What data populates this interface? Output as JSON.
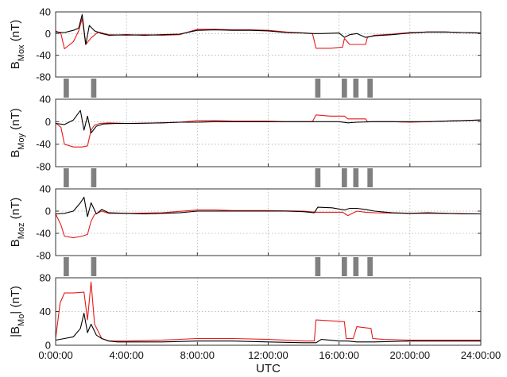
{
  "colors": {
    "primary_trace": "#000000",
    "secondary_trace": "#e41a1c",
    "marker_bars": "#808080",
    "grid": "#b0b0b0",
    "frame": "#333333"
  },
  "x_axis": {
    "label": "UTC",
    "range_hours": [
      0,
      24
    ],
    "tick_hours": [
      0,
      4,
      8,
      12,
      16,
      20,
      24
    ],
    "tick_labels": [
      "0:00:00",
      "4:00:00",
      "8:00:00",
      "12:00:00",
      "16:00:00",
      "20:00:00",
      "24:00:00"
    ]
  },
  "marker_strip": {
    "intervals_hours": [
      [
        0.45,
        0.75
      ],
      [
        2.0,
        2.3
      ],
      [
        14.65,
        14.95
      ],
      [
        16.15,
        16.45
      ],
      [
        16.8,
        17.1
      ],
      [
        17.6,
        17.9
      ]
    ]
  },
  "chart_data": [
    {
      "type": "line",
      "panel": "Bmox",
      "ylabel_main": "B",
      "ylabel_sub": "Mox",
      "ylabel_unit": " (nT)",
      "ylim": [
        -80,
        40
      ],
      "yticks": [
        -80,
        -40,
        0,
        40
      ],
      "ytick_labels": [
        "-80",
        "-40",
        "0",
        "40"
      ],
      "grid": true,
      "series": [
        {
          "color": "black",
          "x": [
            0,
            0.5,
            1.0,
            1.3,
            1.5,
            1.7,
            1.9,
            2.2,
            2.6,
            3.0,
            4.0,
            5.0,
            6.0,
            7.0,
            8.0,
            9.0,
            10.0,
            11.0,
            12.0,
            13.0,
            14.0,
            14.5,
            15.0,
            16.0,
            16.3,
            16.6,
            17.0,
            17.5,
            18.0,
            19.0,
            20.0,
            21.0,
            22.0,
            23.0,
            24.0
          ],
          "y": [
            3,
            2,
            6,
            10,
            35,
            -20,
            15,
            5,
            0,
            -3,
            -2,
            -3,
            -2,
            -1,
            6,
            7,
            6,
            6,
            5,
            2,
            1,
            0,
            0,
            1,
            -7,
            -2,
            0,
            -7,
            -4,
            -2,
            1,
            3,
            3,
            2,
            1
          ]
        },
        {
          "color": "red",
          "x": [
            0,
            0.3,
            0.5,
            1.0,
            1.3,
            1.5,
            1.7,
            2.0,
            2.4,
            3.0,
            4.0,
            5.0,
            6.0,
            7.0,
            8.0,
            9.0,
            10.0,
            11.0,
            12.0,
            13.0,
            14.0,
            14.5,
            14.7,
            15.5,
            16.2,
            16.3,
            16.6,
            16.8,
            17.5,
            17.6,
            18.0,
            19.0,
            20.0,
            21.0,
            22.0,
            23.0,
            24.0
          ],
          "y": [
            5,
            0,
            -28,
            -15,
            5,
            28,
            -20,
            -8,
            3,
            -2,
            -3,
            -2,
            -3,
            -2,
            8,
            8,
            7,
            7,
            6,
            3,
            1,
            0,
            -27,
            -27,
            -25,
            -9,
            -20,
            -20,
            -20,
            -7,
            -3,
            -1,
            2,
            3,
            3,
            2,
            1
          ]
        }
      ]
    },
    {
      "type": "line",
      "panel": "Bmoy",
      "ylabel_main": "B",
      "ylabel_sub": "Moy",
      "ylabel_unit": " (nT)",
      "ylim": [
        -80,
        40
      ],
      "yticks": [
        -80,
        -40,
        0,
        40
      ],
      "ytick_labels": [
        "-80",
        "-40",
        "0",
        "40"
      ],
      "grid": true,
      "series": [
        {
          "color": "black",
          "x": [
            0,
            0.5,
            1.0,
            1.4,
            1.6,
            1.8,
            2.0,
            2.3,
            2.7,
            3.5,
            4.5,
            6.0,
            7.0,
            8.0,
            9.0,
            10.0,
            11.0,
            12.0,
            13.0,
            14.0,
            15.0,
            16.0,
            16.5,
            17.0,
            18.0,
            19.0,
            20.0,
            21.0,
            22.0,
            23.0,
            24.0
          ],
          "y": [
            -3,
            -5,
            3,
            20,
            -15,
            10,
            -20,
            -8,
            -4,
            -3,
            -3,
            -2,
            -1,
            -1,
            0,
            0,
            0,
            0,
            0,
            0,
            0,
            0,
            -2,
            -1,
            0,
            0,
            0,
            0,
            1,
            2,
            3
          ]
        },
        {
          "color": "red",
          "x": [
            0,
            0.3,
            0.5,
            1.0,
            1.5,
            1.8,
            2.0,
            2.2,
            2.5,
            3.0,
            4.0,
            6.0,
            7.0,
            8.0,
            9.0,
            10.0,
            11.0,
            12.0,
            13.0,
            14.0,
            14.5,
            14.7,
            15.5,
            16.3,
            16.5,
            17.0,
            17.5,
            17.6,
            18.0,
            19.0,
            20.0,
            21.0,
            22.0,
            23.0,
            24.0
          ],
          "y": [
            -2,
            -10,
            -40,
            -45,
            -45,
            -43,
            -15,
            -6,
            -3,
            -2,
            -3,
            -2,
            -1,
            2,
            2,
            1,
            1,
            1,
            0,
            0,
            0,
            12,
            10,
            10,
            5,
            5,
            5,
            0,
            0,
            0,
            -1,
            0,
            1,
            2,
            3
          ]
        }
      ]
    },
    {
      "type": "line",
      "panel": "Bmoz",
      "ylabel_main": "B",
      "ylabel_sub": "Moz",
      "ylabel_unit": " (nT)",
      "ylim": [
        -80,
        40
      ],
      "yticks": [
        -80,
        -40,
        0,
        40
      ],
      "ytick_labels": [
        "-80",
        "-40",
        "0",
        "40"
      ],
      "grid": true,
      "series": [
        {
          "color": "black",
          "x": [
            0,
            0.5,
            1.0,
            1.4,
            1.6,
            1.8,
            2.0,
            2.3,
            2.6,
            3.0,
            4.0,
            5.0,
            6.0,
            7.0,
            8.0,
            9.0,
            10.0,
            11.0,
            12.0,
            13.0,
            14.0,
            14.6,
            14.8,
            15.6,
            16.3,
            16.6,
            17.0,
            17.5,
            18.0,
            19.0,
            20.0,
            21.0,
            22.0,
            23.0,
            24.0
          ],
          "y": [
            -5,
            -4,
            0,
            15,
            25,
            -10,
            15,
            -5,
            3,
            -3,
            -4,
            -5,
            -4,
            -3,
            0,
            0,
            0,
            0,
            0,
            0,
            -1,
            -3,
            7,
            6,
            2,
            5,
            5,
            3,
            0,
            -3,
            -4,
            -3,
            -4,
            -5,
            -5
          ]
        },
        {
          "color": "red",
          "x": [
            0,
            0.3,
            0.5,
            1.0,
            1.5,
            1.8,
            2.0,
            2.2,
            2.6,
            3.0,
            4.0,
            6.0,
            8.0,
            9.0,
            10.0,
            12.0,
            14.0,
            14.7,
            15.5,
            16.2,
            16.5,
            17.0,
            17.5,
            18.0,
            20.0,
            22.0,
            24.0
          ],
          "y": [
            -5,
            -25,
            -45,
            -48,
            -45,
            -42,
            -18,
            -6,
            0,
            -4,
            -4,
            -3,
            2,
            2,
            1,
            1,
            0,
            -2,
            -2,
            -2,
            -8,
            0,
            -2,
            -3,
            -4,
            -4,
            -5
          ]
        }
      ]
    },
    {
      "type": "line",
      "panel": "|Bmo|",
      "ylabel_main": "|B",
      "ylabel_sub": "Mo",
      "ylabel_unit": "| (nT)",
      "ylim": [
        0,
        80
      ],
      "yticks": [
        0,
        40,
        80
      ],
      "ytick_labels": [
        "0",
        "40",
        "80"
      ],
      "grid": true,
      "series": [
        {
          "color": "black",
          "x": [
            0,
            0.5,
            1.0,
            1.4,
            1.6,
            1.8,
            2.0,
            2.3,
            2.6,
            3.0,
            3.5,
            4.0,
            6.0,
            8.0,
            10.0,
            12.0,
            14.0,
            14.7,
            15.0,
            16.0,
            16.5,
            17.0,
            18.0,
            20.0,
            22.0,
            24.0
          ],
          "y": [
            6,
            8,
            10,
            20,
            38,
            15,
            25,
            12,
            8,
            5,
            4,
            4,
            4,
            5,
            5,
            4,
            3,
            3,
            7,
            5,
            5,
            4,
            4,
            5,
            5,
            5
          ]
        },
        {
          "color": "red",
          "x": [
            0,
            0.25,
            0.5,
            1.0,
            1.6,
            1.8,
            2.0,
            2.2,
            2.6,
            3.0,
            4.0,
            6.0,
            8.0,
            10.0,
            12.0,
            14.0,
            14.6,
            14.7,
            16.3,
            16.4,
            16.8,
            17.0,
            17.8,
            17.9,
            18.5,
            20.0,
            22.0,
            24.0
          ],
          "y": [
            8,
            50,
            62,
            62,
            63,
            30,
            75,
            25,
            8,
            5,
            5,
            6,
            8,
            8,
            7,
            5,
            5,
            30,
            28,
            8,
            8,
            22,
            20,
            8,
            7,
            6,
            6,
            6
          ]
        }
      ]
    }
  ]
}
